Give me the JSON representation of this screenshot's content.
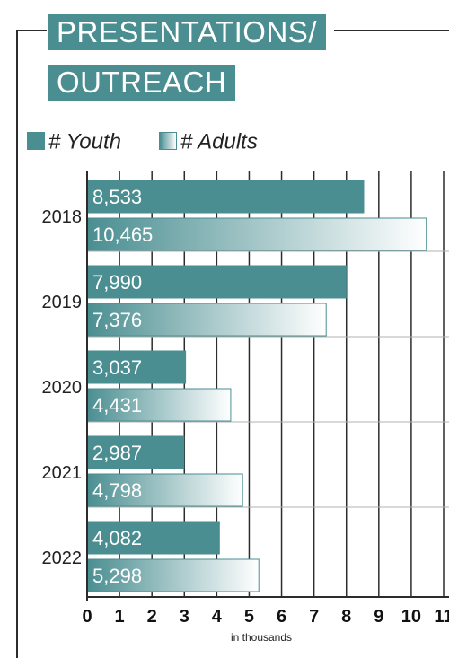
{
  "title": {
    "line1": "PRESENTATIONS/",
    "line2": "OUTREACH"
  },
  "legend": [
    {
      "label": "# Youth",
      "color": "#4a8e91"
    },
    {
      "label": "# Adults",
      "color": "#4a8e91"
    }
  ],
  "chart_data": {
    "type": "bar",
    "orientation": "horizontal",
    "categories": [
      "2018",
      "2019",
      "2020",
      "2021",
      "2022"
    ],
    "series": [
      {
        "name": "# Youth",
        "values": [
          8.533,
          7.99,
          3.037,
          2.987,
          4.082
        ],
        "labels": [
          "8,533",
          "7,990",
          "3,037",
          "2,987",
          "4,082"
        ],
        "color": "#4a8e91"
      },
      {
        "name": "# Adults",
        "values": [
          10.465,
          7.376,
          4.431,
          4.798,
          5.298
        ],
        "labels": [
          "10,465",
          "7,376",
          "4,431",
          "4,798",
          "5,298"
        ],
        "color": "#4a8e91",
        "fill": "gradient"
      }
    ],
    "xlim": [
      0,
      11
    ],
    "xticks": [
      "0",
      "1",
      "2",
      "3",
      "4",
      "5",
      "6",
      "7",
      "8",
      "9",
      "10",
      "11"
    ],
    "xlabel": "in thousands",
    "grid": "vertical",
    "legend_position": "top-left"
  }
}
